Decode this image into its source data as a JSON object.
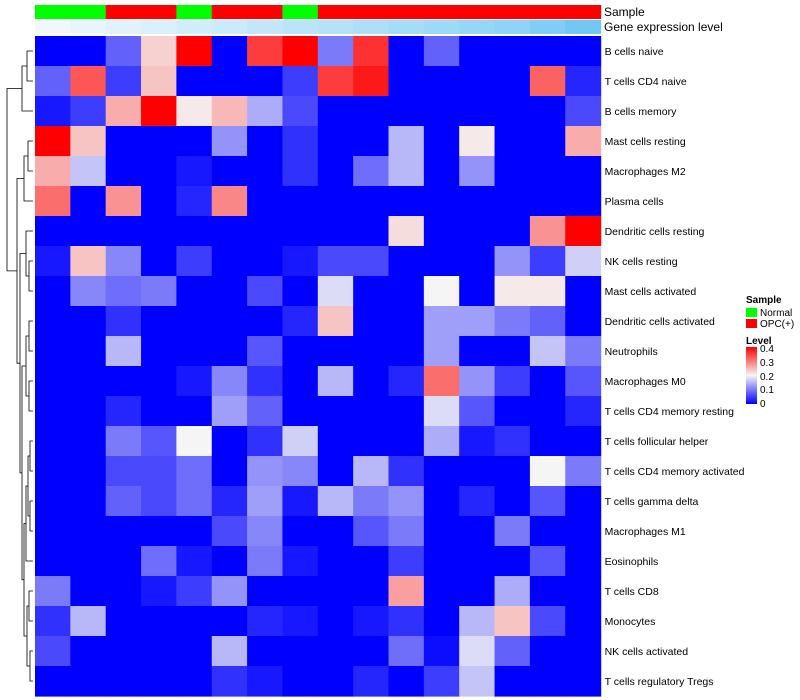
{
  "chart_data": {
    "type": "heatmap",
    "annotation_labels": {
      "sample": "Sample",
      "expression": "Gene expression level"
    },
    "rows": [
      "B cells naive",
      "T cells CD4 naive",
      "B cells memory",
      "Mast cells resting",
      "Macrophages M2",
      "Plasma cells",
      "Dendritic cells resting",
      "NK cells resting",
      "Mast cells activated",
      "Dendritic cells activated",
      "Neutrophils",
      "Macrophages M0",
      "T cells CD4 memory resting",
      "T cells follicular helper",
      "T cells CD4 memory activated",
      "T cells gamma delta",
      "Macrophages M1",
      "Eosinophils",
      "T cells CD8",
      "Monocytes",
      "NK cells activated",
      "T cells regulatory  Tregs"
    ],
    "sample_groups": [
      "Normal",
      "Normal",
      "OPC(+)",
      "OPC(+)",
      "Normal",
      "OPC(+)",
      "OPC(+)",
      "Normal",
      "OPC(+)",
      "OPC(+)",
      "OPC(+)",
      "OPC(+)",
      "OPC(+)",
      "OPC(+)",
      "OPC(+)",
      "OPC(+)"
    ],
    "expression_level": [
      0.0,
      0.05,
      0.1,
      0.15,
      0.2,
      0.25,
      0.3,
      0.35,
      0.4,
      0.45,
      0.5,
      0.55,
      0.6,
      0.65,
      0.75,
      0.85
    ],
    "values": [
      [
        0.0,
        0.0,
        0.08,
        0.23,
        0.4,
        0.0,
        0.35,
        0.4,
        0.1,
        0.36,
        0.0,
        0.08,
        0.0,
        0.0,
        0.0,
        0.0
      ],
      [
        0.08,
        0.33,
        0.05,
        0.24,
        0.0,
        0.0,
        0.0,
        0.05,
        0.35,
        0.38,
        0.0,
        0.0,
        0.0,
        0.0,
        0.32,
        0.03
      ],
      [
        0.02,
        0.05,
        0.26,
        0.4,
        0.21,
        0.25,
        0.14,
        0.06,
        0.0,
        0.0,
        0.0,
        0.0,
        0.0,
        0.0,
        0.0,
        0.06
      ],
      [
        0.4,
        0.24,
        0.0,
        0.0,
        0.0,
        0.12,
        0.0,
        0.04,
        0.0,
        0.0,
        0.15,
        0.0,
        0.21,
        0.0,
        0.0,
        0.26
      ],
      [
        0.26,
        0.16,
        0.0,
        0.0,
        0.02,
        0.0,
        0.0,
        0.04,
        0.0,
        0.09,
        0.15,
        0.0,
        0.12,
        0.0,
        0.0,
        0.0
      ],
      [
        0.31,
        0.0,
        0.28,
        0.0,
        0.03,
        0.29,
        0.0,
        0.0,
        0.0,
        0.0,
        0.0,
        0.0,
        0.0,
        0.0,
        0.0,
        0.0
      ],
      [
        0.0,
        0.0,
        0.0,
        0.0,
        0.0,
        0.0,
        0.0,
        0.0,
        0.0,
        0.0,
        0.22,
        0.0,
        0.0,
        0.0,
        0.28,
        0.4
      ],
      [
        0.02,
        0.24,
        0.11,
        0.0,
        0.05,
        0.0,
        0.0,
        0.02,
        0.06,
        0.06,
        0.0,
        0.0,
        0.0,
        0.12,
        0.05,
        0.17
      ],
      [
        0.0,
        0.11,
        0.09,
        0.1,
        0.0,
        0.0,
        0.06,
        0.0,
        0.18,
        0.0,
        0.0,
        0.2,
        0.0,
        0.21,
        0.21,
        0.0
      ],
      [
        0.0,
        0.0,
        0.04,
        0.0,
        0.0,
        0.0,
        0.0,
        0.03,
        0.24,
        0.0,
        0.0,
        0.13,
        0.13,
        0.1,
        0.08,
        0.0
      ],
      [
        0.0,
        0.0,
        0.15,
        0.0,
        0.0,
        0.0,
        0.07,
        0.0,
        0.0,
        0.0,
        0.0,
        0.13,
        0.0,
        0.0,
        0.16,
        0.1
      ],
      [
        0.0,
        0.0,
        0.0,
        0.0,
        0.02,
        0.11,
        0.04,
        0.0,
        0.15,
        0.0,
        0.03,
        0.31,
        0.12,
        0.05,
        0.0,
        0.07
      ],
      [
        0.0,
        0.0,
        0.03,
        0.0,
        0.0,
        0.13,
        0.08,
        0.0,
        0.0,
        0.0,
        0.0,
        0.18,
        0.07,
        0.0,
        0.0,
        0.03
      ],
      [
        0.0,
        0.0,
        0.1,
        0.07,
        0.2,
        0.0,
        0.04,
        0.17,
        0.0,
        0.0,
        0.0,
        0.14,
        0.02,
        0.04,
        0.0,
        0.0
      ],
      [
        0.0,
        0.0,
        0.06,
        0.06,
        0.09,
        0.0,
        0.12,
        0.11,
        0.0,
        0.15,
        0.04,
        0.0,
        0.0,
        0.0,
        0.2,
        0.1
      ],
      [
        0.0,
        0.0,
        0.08,
        0.06,
        0.09,
        0.03,
        0.13,
        0.02,
        0.15,
        0.1,
        0.12,
        0.0,
        0.03,
        0.0,
        0.07,
        0.0
      ],
      [
        0.0,
        0.0,
        0.0,
        0.0,
        0.0,
        0.06,
        0.11,
        0.0,
        0.0,
        0.07,
        0.1,
        0.0,
        0.0,
        0.1,
        0.0,
        0.0
      ],
      [
        0.0,
        0.0,
        0.0,
        0.09,
        0.02,
        0.0,
        0.1,
        0.02,
        0.0,
        0.0,
        0.05,
        0.0,
        0.0,
        0.0,
        0.07,
        0.0
      ],
      [
        0.1,
        0.0,
        0.0,
        0.02,
        0.05,
        0.12,
        0.0,
        0.0,
        0.0,
        0.0,
        0.27,
        0.0,
        0.0,
        0.14,
        0.0,
        0.0
      ],
      [
        0.04,
        0.15,
        0.0,
        0.0,
        0.0,
        0.0,
        0.03,
        0.02,
        0.0,
        0.02,
        0.04,
        0.0,
        0.15,
        0.24,
        0.06,
        0.0
      ],
      [
        0.06,
        0.0,
        0.0,
        0.0,
        0.0,
        0.15,
        0.0,
        0.0,
        0.0,
        0.0,
        0.09,
        0.01,
        0.18,
        0.08,
        0.0,
        0.0
      ],
      [
        0.0,
        0.0,
        0.0,
        0.0,
        0.0,
        0.04,
        0.02,
        0.0,
        0.0,
        0.03,
        0.0,
        0.05,
        0.16,
        0.0,
        0.0,
        0.0
      ]
    ],
    "color_scale": {
      "min": 0,
      "max": 0.4,
      "low": "#0000ff",
      "mid": "#f5f5f5",
      "high": "#ff0000",
      "mid_value": 0.2
    },
    "legend_sample": {
      "title": "Sample",
      "items": [
        {
          "label": "Normal",
          "color": "#00ff00"
        },
        {
          "label": "OPC(+)",
          "color": "#ff0000"
        }
      ]
    },
    "legend_level": {
      "title": "Level",
      "ticks": [
        "0.4",
        "0.3",
        "0.2",
        "0.1",
        "0"
      ]
    },
    "expression_colors": {
      "low": "#f0f8fc",
      "high": "#5ac0f2"
    },
    "legend_placement": "right"
  }
}
